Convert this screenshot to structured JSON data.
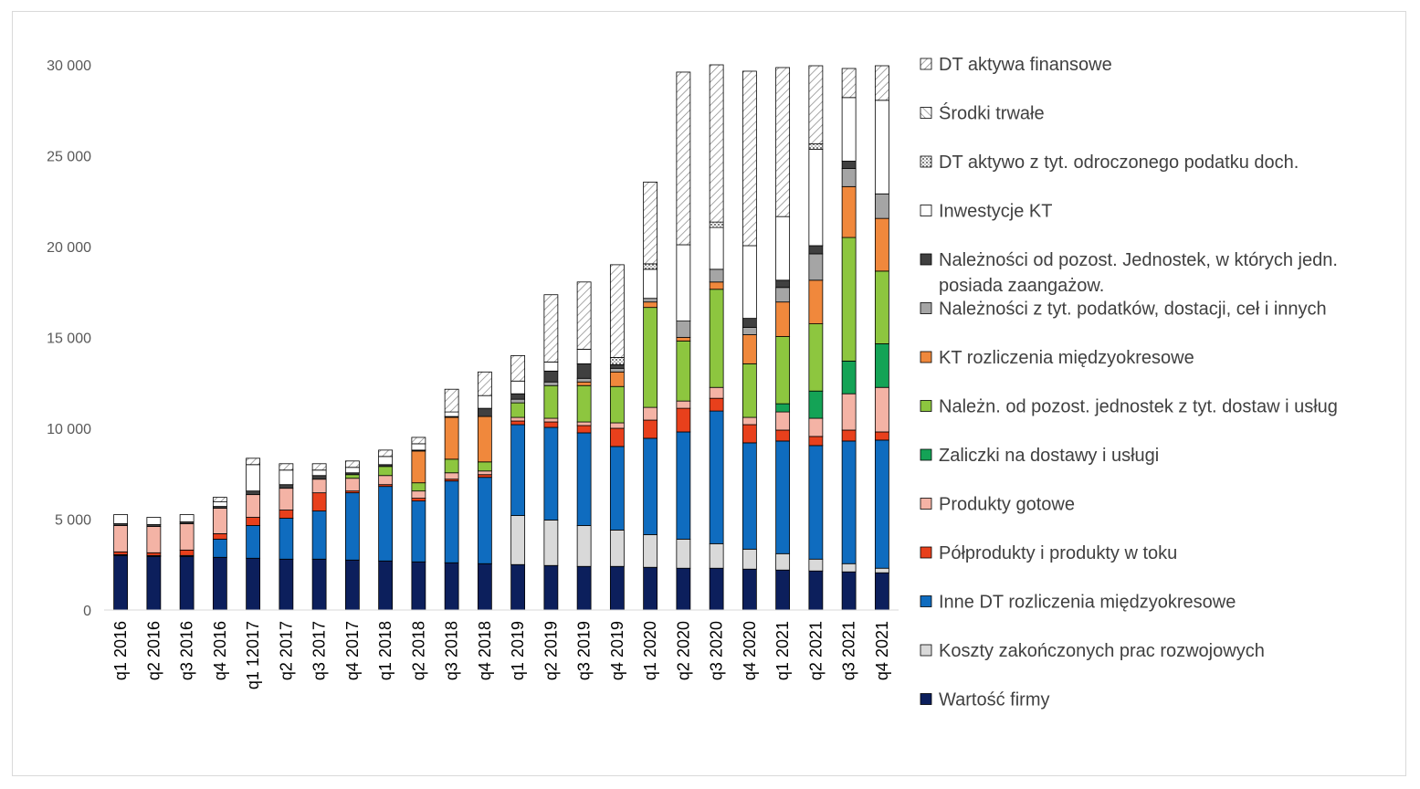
{
  "chart_data": {
    "type": "bar",
    "stacked": true,
    "categories": [
      "q1 2016",
      "q2 2016",
      "q3 2016",
      "q4 2016",
      "q1 12017",
      "q2 2017",
      "q3 2017",
      "q4 2017",
      "q1 2018",
      "q2 2018",
      "q3 2018",
      "q4 2018",
      "q1 2019",
      "q2 2019",
      "q3 2019",
      "q4 2019",
      "q1 2020",
      "q2 2020",
      "q3 2020",
      "q4 2020",
      "q1 2021",
      "q2 2021",
      "q3 2021",
      "q4 2021"
    ],
    "ylim": [
      0,
      30000
    ],
    "yticks": [
      0,
      5000,
      10000,
      15000,
      20000,
      25000,
      30000
    ],
    "ytick_labels": [
      "0",
      "5 000",
      "10 000",
      "15 000",
      "20 000",
      "25 000",
      "30 000"
    ],
    "grid": false,
    "legend_position": "right",
    "series": [
      {
        "name": "Wartość firmy",
        "color": "#0c1f5c",
        "pattern": "solid",
        "values": [
          3000,
          2950,
          2950,
          2900,
          2850,
          2800,
          2800,
          2750,
          2700,
          2650,
          2600,
          2550,
          2500,
          2450,
          2400,
          2400,
          2350,
          2300,
          2300,
          2250,
          2200,
          2150,
          2100,
          2050
        ]
      },
      {
        "name": "Koszty zakończonych prac rozwojowych",
        "color": "#d9d9d9",
        "pattern": "solid",
        "values": [
          0,
          0,
          0,
          0,
          0,
          0,
          0,
          0,
          0,
          0,
          0,
          0,
          2700,
          2500,
          2250,
          2000,
          1800,
          1600,
          1350,
          1100,
          900,
          650,
          450,
          250
        ]
      },
      {
        "name": "Inne DT rozliczenia międzyokresowe",
        "color": "#0f6cbf",
        "pattern": "solid",
        "values": [
          50,
          50,
          50,
          1000,
          1800,
          2250,
          2650,
          3700,
          4100,
          3350,
          4500,
          4750,
          5000,
          5100,
          5100,
          4600,
          5300,
          5900,
          7300,
          5850,
          6200,
          6250,
          6750,
          7050
        ]
      },
      {
        "name": "Półprodukty i produkty w toku",
        "color": "#e8401c",
        "pattern": "solid",
        "values": [
          150,
          150,
          300,
          300,
          450,
          450,
          1000,
          100,
          100,
          150,
          100,
          150,
          200,
          300,
          400,
          1000,
          1000,
          1300,
          700,
          1000,
          600,
          500,
          600,
          450
        ]
      },
      {
        "name": "Produkty gotowe",
        "color": "#f4b3a5",
        "pattern": "solid",
        "values": [
          1450,
          1450,
          1450,
          1400,
          1250,
          1200,
          750,
          700,
          500,
          400,
          350,
          200,
          200,
          200,
          200,
          300,
          700,
          400,
          600,
          400,
          1000,
          1000,
          2000,
          2450
        ]
      },
      {
        "name": "Zaliczki na dostawy i usługi",
        "color": "#14a356",
        "pattern": "solid",
        "values": [
          0,
          0,
          0,
          0,
          0,
          0,
          0,
          0,
          0,
          0,
          0,
          0,
          0,
          0,
          0,
          0,
          0,
          0,
          0,
          0,
          450,
          1500,
          1800,
          2400
        ]
      },
      {
        "name": "Należn. od pozost. jednostek z tyt. dostaw i usług",
        "color": "#8dc63f",
        "pattern": "solid",
        "values": [
          0,
          0,
          0,
          0,
          0,
          0,
          0,
          200,
          500,
          450,
          750,
          500,
          800,
          1800,
          2000,
          2000,
          5500,
          3300,
          5400,
          2950,
          3700,
          3700,
          6800,
          4000
        ]
      },
      {
        "name": "KT rozliczenia międzyokresowe",
        "color": "#f0883c",
        "pattern": "solid",
        "values": [
          0,
          0,
          0,
          0,
          0,
          0,
          0,
          0,
          0,
          1750,
          2300,
          2500,
          0,
          0,
          200,
          800,
          300,
          200,
          400,
          1600,
          1900,
          2400,
          2800,
          2900
        ]
      },
      {
        "name": "Należności z tyt. podatków, dostacji, ceł i innych",
        "color": "#a5a5a5",
        "pattern": "solid",
        "values": [
          0,
          0,
          0,
          0,
          0,
          0,
          0,
          0,
          0,
          0,
          0,
          0,
          200,
          200,
          200,
          200,
          200,
          900,
          700,
          400,
          800,
          1450,
          1000,
          1350
        ]
      },
      {
        "name": "Należności od pozost. Jednostek, w których jedn. posiada zaangażow.",
        "color": "#404040",
        "pattern": "solid",
        "values": [
          100,
          100,
          100,
          100,
          200,
          200,
          200,
          100,
          100,
          50,
          50,
          450,
          300,
          600,
          800,
          200,
          0,
          0,
          0,
          500,
          400,
          450,
          400,
          0
        ]
      },
      {
        "name": "Inwestycje KT",
        "color": "#ffffff",
        "pattern": "solid",
        "values": [
          500,
          400,
          400,
          250,
          1450,
          800,
          300,
          300,
          450,
          350,
          250,
          700,
          700,
          500,
          800,
          0,
          1600,
          4200,
          2300,
          4000,
          3500,
          5300,
          3500,
          5150
        ]
      },
      {
        "name": "DT aktywo z tyt. odroczonego podatku doch.",
        "color": "#ffffff",
        "pattern": "dots",
        "values": [
          0,
          0,
          0,
          0,
          0,
          0,
          0,
          0,
          0,
          0,
          0,
          0,
          0,
          0,
          0,
          400,
          300,
          0,
          300,
          0,
          0,
          300,
          0,
          0
        ]
      },
      {
        "name": "Środki trwałe",
        "color": "#ffffff",
        "pattern": "backhatch",
        "values": [
          0,
          0,
          0,
          0,
          0,
          0,
          0,
          0,
          0,
          0,
          0,
          0,
          0,
          0,
          0,
          0,
          0,
          0,
          0,
          0,
          0,
          0,
          0,
          0
        ]
      },
      {
        "name": "DT aktywa finansowe",
        "color": "#ffffff",
        "pattern": "hatch",
        "values": [
          0,
          0,
          0,
          250,
          350,
          350,
          350,
          350,
          350,
          350,
          1250,
          1300,
          1400,
          3700,
          3700,
          5100,
          4500,
          9500,
          8700,
          9600,
          8200,
          4300,
          1600,
          1900
        ]
      }
    ]
  }
}
